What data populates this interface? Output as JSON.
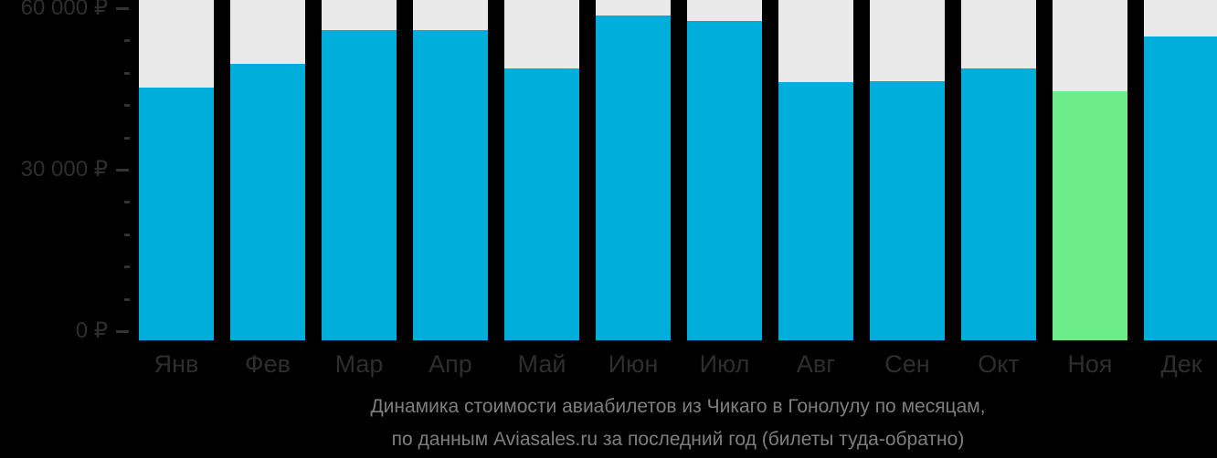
{
  "chart_data": {
    "type": "bar",
    "title": "Динамика стоимости авиабилетов из Чикаго в Гонолулу по месяцам, по данным Aviasales.ru за последний год (билеты туда-обратно)",
    "title_line1": "Динамика стоимости авиабилетов из Чикаго в Гонолулу по месяцам,",
    "title_line2": "по данным Aviasales.ru за последний год (билеты туда-обратно)",
    "categories": [
      "Янв",
      "Фев",
      "Мар",
      "Апр",
      "Май",
      "Июн",
      "Июл",
      "Авг",
      "Сен",
      "Окт",
      "Ноя",
      "Дек"
    ],
    "values": [
      45200,
      49600,
      56000,
      55900,
      48800,
      58600,
      57700,
      46200,
      46400,
      48800,
      44600,
      54700
    ],
    "highlight_index": 10,
    "highlight_meaning": "cheapest-month",
    "ylim": [
      0,
      60000
    ],
    "y_ticks": [
      {
        "value": 0,
        "label": "0 ₽"
      },
      {
        "value": 30000,
        "label": "30 000 ₽"
      },
      {
        "value": 60000,
        "label": "60 000 ₽"
      }
    ],
    "y_minor_tick_step": 6000,
    "grid": false,
    "legend": false,
    "colors": {
      "bar": "#00aedc",
      "highlight_bar": "#6cec8b",
      "track": "#e9e9e9",
      "axis_text": "#2e2e2e",
      "title_text": "#7e7e7e",
      "background": "#000000"
    }
  }
}
